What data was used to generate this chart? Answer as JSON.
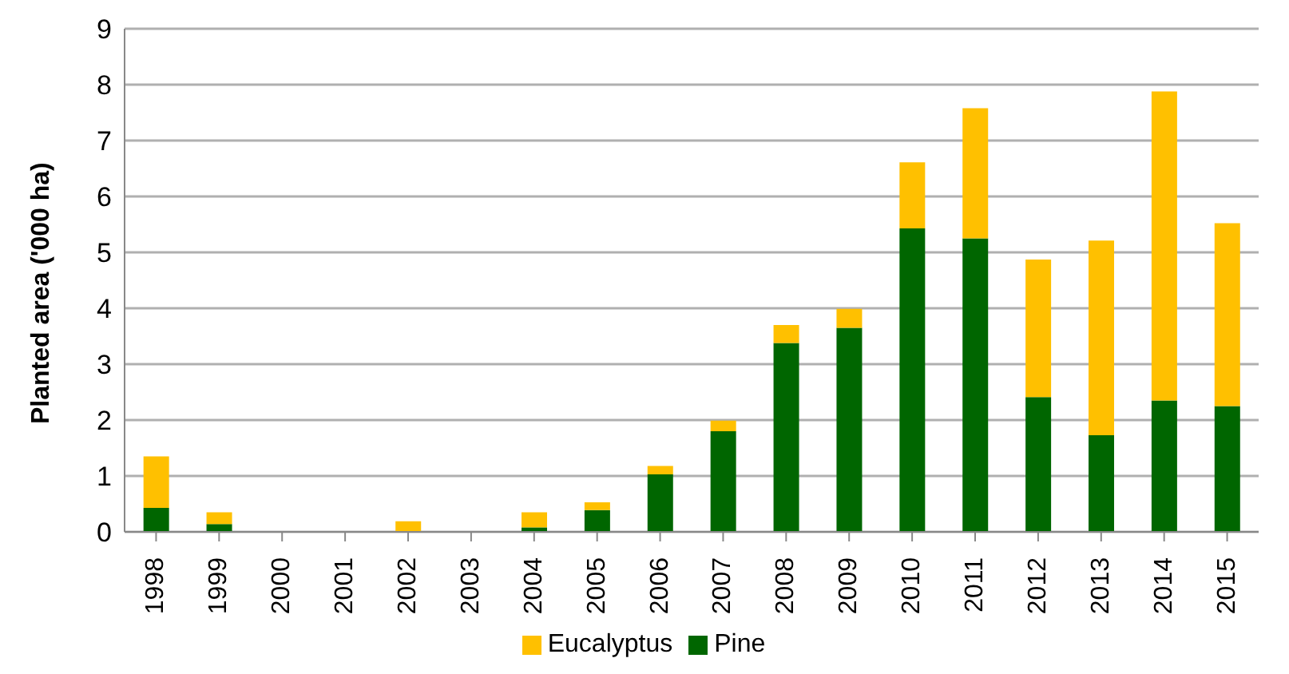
{
  "chart_data": {
    "type": "bar",
    "stacked": true,
    "ylabel": "Planted area ('000 ha)",
    "categories": [
      "1998",
      "1999",
      "2000",
      "2001",
      "2002",
      "2003",
      "2004",
      "2005",
      "2006",
      "2007",
      "2008",
      "2009",
      "2010",
      "2011",
      "2012",
      "2013",
      "2014",
      "2015"
    ],
    "series": [
      {
        "name": "Pine",
        "color": "#006600",
        "values": [
          0.43,
          0.14,
          0,
          0,
          0,
          0,
          0.08,
          0.39,
          1.03,
          1.8,
          3.38,
          3.65,
          5.43,
          5.25,
          2.41,
          1.73,
          2.35,
          2.25
        ]
      },
      {
        "name": "Eucalyptus",
        "color": "#ffc000",
        "values": [
          0.92,
          0.21,
          0,
          0,
          0.19,
          0,
          0.27,
          0.14,
          0.15,
          0.19,
          0.32,
          0.34,
          1.18,
          2.33,
          2.46,
          3.48,
          5.53,
          3.27
        ]
      }
    ],
    "ylim": [
      0,
      9
    ],
    "yticks": [
      0,
      1,
      2,
      3,
      4,
      5,
      6,
      7,
      8,
      9
    ],
    "grid": "y",
    "legend": "bottom"
  }
}
